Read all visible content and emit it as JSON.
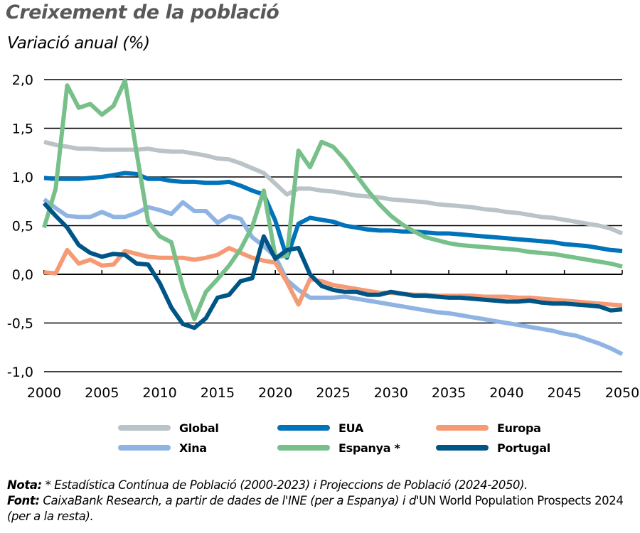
{
  "header": {
    "title": "Creixement de la població",
    "subtitle": "Variació anual (%)"
  },
  "legend": {
    "items": [
      {
        "key": "global",
        "label": "Global",
        "color": "#b9c3c8"
      },
      {
        "key": "eua",
        "label": "EUA",
        "color": "#0073bb"
      },
      {
        "key": "europa",
        "label": "Europa",
        "color": "#f59a73"
      },
      {
        "key": "xina",
        "label": "Xina",
        "color": "#8fb4e3"
      },
      {
        "key": "espanya",
        "label": "Espanya *",
        "color": "#77c08a"
      },
      {
        "key": "portugal",
        "label": "Portugal",
        "color": "#005587"
      }
    ]
  },
  "notes": {
    "nota_label": "Nota:",
    "nota_text": " * Estadística Contínua de Població (2000-2023) i Projeccions de Població (2024-2050).",
    "font_label": "Font:",
    "font_text_italic": " CaixaBank Research, a partir de dades de l'INE (per a Espanya) i d'",
    "font_text_regular": "UN World Population Prospects 2024",
    "font_text_end": " (per a la resta)."
  },
  "chart_data": {
    "type": "line",
    "title": "Creixement de la població",
    "subtitle": "Variació anual (%)",
    "xlabel": "",
    "ylabel": "Variació anual (%)",
    "xlim": [
      2000,
      2050
    ],
    "ylim": [
      -1.0,
      2.0
    ],
    "x_ticks": [
      "2000",
      "2005",
      "2010",
      "2015",
      "2020",
      "2025",
      "2030",
      "2035",
      "2040",
      "2045",
      "2050"
    ],
    "y_ticks": [
      "2,0",
      "1,5",
      "1,0",
      "0,5",
      "0,0",
      "-0,5",
      "-1,0"
    ],
    "y_tick_values": [
      2.0,
      1.5,
      1.0,
      0.5,
      0.0,
      -0.5,
      -1.0
    ],
    "grid": "horizontal",
    "legend_position": "bottom",
    "x": [
      2000,
      2001,
      2002,
      2003,
      2004,
      2005,
      2006,
      2007,
      2008,
      2009,
      2010,
      2011,
      2012,
      2013,
      2014,
      2015,
      2016,
      2017,
      2018,
      2019,
      2020,
      2021,
      2022,
      2023,
      2024,
      2025,
      2026,
      2027,
      2028,
      2029,
      2030,
      2031,
      2032,
      2033,
      2034,
      2035,
      2036,
      2037,
      2038,
      2039,
      2040,
      2041,
      2042,
      2043,
      2044,
      2045,
      2046,
      2047,
      2048,
      2049,
      2050
    ],
    "series": [
      {
        "name": "Global",
        "color": "#b9c3c8",
        "values": [
          1.36,
          1.33,
          1.31,
          1.29,
          1.29,
          1.28,
          1.28,
          1.28,
          1.28,
          1.29,
          1.27,
          1.26,
          1.26,
          1.24,
          1.22,
          1.19,
          1.18,
          1.14,
          1.09,
          1.04,
          0.93,
          0.82,
          0.88,
          0.88,
          0.86,
          0.85,
          0.83,
          0.81,
          0.8,
          0.79,
          0.77,
          0.76,
          0.75,
          0.74,
          0.72,
          0.71,
          0.7,
          0.69,
          0.67,
          0.66,
          0.64,
          0.63,
          0.61,
          0.59,
          0.58,
          0.56,
          0.54,
          0.52,
          0.5,
          0.47,
          0.42
        ]
      },
      {
        "name": "EUA",
        "color": "#0073bb",
        "values": [
          0.99,
          0.98,
          0.98,
          0.98,
          0.99,
          1.0,
          1.02,
          1.04,
          1.03,
          0.98,
          0.98,
          0.96,
          0.95,
          0.95,
          0.94,
          0.94,
          0.95,
          0.91,
          0.86,
          0.82,
          0.55,
          0.17,
          0.52,
          0.58,
          0.56,
          0.54,
          0.5,
          0.48,
          0.46,
          0.45,
          0.45,
          0.44,
          0.44,
          0.43,
          0.42,
          0.42,
          0.41,
          0.4,
          0.39,
          0.38,
          0.37,
          0.36,
          0.35,
          0.34,
          0.33,
          0.31,
          0.3,
          0.29,
          0.27,
          0.25,
          0.24
        ]
      },
      {
        "name": "Europa",
        "color": "#f59a73",
        "values": [
          0.02,
          0.01,
          0.25,
          0.11,
          0.15,
          0.09,
          0.1,
          0.24,
          0.21,
          0.18,
          0.17,
          0.17,
          0.17,
          0.15,
          0.17,
          0.2,
          0.27,
          0.22,
          0.17,
          0.14,
          0.12,
          -0.08,
          -0.31,
          -0.05,
          -0.07,
          -0.11,
          -0.13,
          -0.15,
          -0.17,
          -0.19,
          -0.19,
          -0.2,
          -0.21,
          -0.21,
          -0.22,
          -0.22,
          -0.22,
          -0.22,
          -0.23,
          -0.23,
          -0.23,
          -0.24,
          -0.24,
          -0.25,
          -0.26,
          -0.27,
          -0.28,
          -0.29,
          -0.3,
          -0.31,
          -0.32
        ]
      },
      {
        "name": "Xina",
        "color": "#8fb4e3",
        "values": [
          0.77,
          0.68,
          0.6,
          0.59,
          0.59,
          0.64,
          0.59,
          0.59,
          0.63,
          0.69,
          0.66,
          0.62,
          0.74,
          0.65,
          0.65,
          0.53,
          0.6,
          0.57,
          0.38,
          0.29,
          0.18,
          -0.06,
          -0.16,
          -0.24,
          -0.24,
          -0.24,
          -0.23,
          -0.25,
          -0.27,
          -0.29,
          -0.31,
          -0.33,
          -0.35,
          -0.37,
          -0.39,
          -0.4,
          -0.42,
          -0.44,
          -0.46,
          -0.48,
          -0.5,
          -0.52,
          -0.54,
          -0.56,
          -0.58,
          -0.61,
          -0.63,
          -0.67,
          -0.71,
          -0.76,
          -0.82
        ]
      },
      {
        "name": "Espanya *",
        "color": "#77c08a",
        "values": [
          0.48,
          0.88,
          1.94,
          1.71,
          1.75,
          1.64,
          1.73,
          1.99,
          1.25,
          0.54,
          0.39,
          0.33,
          -0.13,
          -0.46,
          -0.18,
          -0.05,
          0.09,
          0.26,
          0.49,
          0.86,
          0.18,
          0.19,
          1.27,
          1.1,
          1.36,
          1.31,
          1.18,
          1.02,
          0.86,
          0.72,
          0.6,
          0.51,
          0.44,
          0.38,
          0.35,
          0.32,
          0.3,
          0.29,
          0.28,
          0.27,
          0.26,
          0.25,
          0.23,
          0.22,
          0.21,
          0.19,
          0.17,
          0.15,
          0.13,
          0.11,
          0.08
        ]
      },
      {
        "name": "Portugal",
        "color": "#005587",
        "values": [
          0.73,
          0.6,
          0.48,
          0.3,
          0.22,
          0.18,
          0.21,
          0.2,
          0.11,
          0.1,
          -0.09,
          -0.34,
          -0.51,
          -0.55,
          -0.45,
          -0.24,
          -0.21,
          -0.07,
          -0.04,
          0.39,
          0.16,
          0.25,
          0.27,
          0.0,
          -0.12,
          -0.16,
          -0.18,
          -0.18,
          -0.21,
          -0.21,
          -0.18,
          -0.2,
          -0.22,
          -0.22,
          -0.23,
          -0.24,
          -0.24,
          -0.25,
          -0.26,
          -0.27,
          -0.28,
          -0.28,
          -0.27,
          -0.29,
          -0.3,
          -0.3,
          -0.31,
          -0.32,
          -0.33,
          -0.37,
          -0.36
        ]
      }
    ]
  }
}
